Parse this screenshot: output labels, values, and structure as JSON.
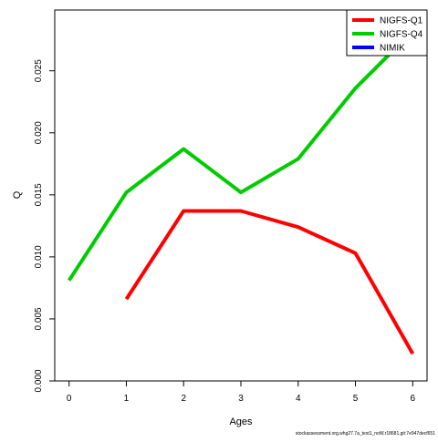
{
  "chart_data": {
    "type": "line",
    "title": "",
    "xlabel": "Ages",
    "ylabel": "Q",
    "xlim": [
      -0.25,
      6.25
    ],
    "ylim": [
      0.0,
      0.0299
    ],
    "xticks": [
      0,
      1,
      2,
      3,
      4,
      5,
      6
    ],
    "xtick_labels": [
      "0",
      "1",
      "2",
      "3",
      "4",
      "5",
      "6"
    ],
    "yticks": [
      0.0,
      0.005,
      0.01,
      0.015,
      0.02,
      0.025
    ],
    "ytick_labels": [
      "0.000",
      "0.005",
      "0.010",
      "0.015",
      "0.020",
      "0.025"
    ],
    "grid": false,
    "legend_position": "top-right",
    "series": [
      {
        "name": "NIGFS-Q1",
        "color": "#ff0000",
        "x": [
          1,
          2,
          3,
          4,
          5,
          6
        ],
        "y": [
          0.0066,
          0.0137,
          0.0137,
          0.0124,
          0.0103,
          0.0022
        ]
      },
      {
        "name": "NIGFS-Q4",
        "color": "#00cc00",
        "x": [
          0,
          1,
          2,
          3,
          4,
          5,
          6
        ],
        "y": [
          0.0081,
          0.0152,
          0.0187,
          0.0152,
          0.0179,
          0.0236,
          0.0282
        ]
      },
      {
        "name": "NIMIK",
        "color": "#0000ff",
        "x": [],
        "y": []
      }
    ],
    "footnote": "stockassessment.org,whg27.7a_test1_noW,r18681,git:7e947decf651"
  }
}
